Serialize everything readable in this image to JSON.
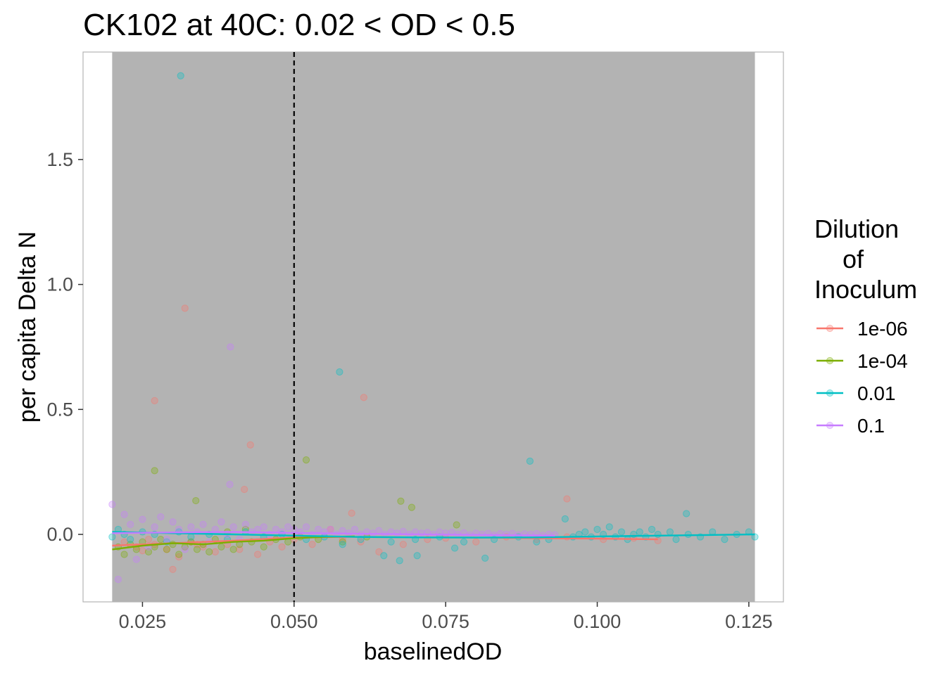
{
  "chart_data": {
    "type": "scatter",
    "title": "CK102 at 40C: 0.02 < OD < 0.5",
    "xlabel": "baselinedOD",
    "ylabel": "per capita Delta N",
    "xlim": [
      0.0152,
      0.1307
    ],
    "ylim": [
      -0.27,
      1.93
    ],
    "x_ticks": [
      "0.025",
      "0.050",
      "0.075",
      "0.100",
      "0.125"
    ],
    "x_tick_values": [
      0.025,
      0.05,
      0.075,
      0.1,
      0.125
    ],
    "y_ticks": [
      "0.0",
      "0.5",
      "1.0",
      "1.5"
    ],
    "y_tick_values": [
      0.0,
      0.5,
      1.0,
      1.5
    ],
    "shaded_region": {
      "x_from": 0.02,
      "x_to": 0.126,
      "color": "#b3b3b3"
    },
    "reference_line": {
      "x": 0.05,
      "style": "dashed",
      "color": "#000000"
    },
    "grid": false,
    "legend": {
      "title": "Dilution\n    of\nInoculum",
      "placement": "right"
    },
    "series": [
      {
        "name": "1e-06",
        "color": "#f8766d",
        "points": [
          [
            0.027,
            0.535
          ],
          [
            0.032,
            0.905
          ],
          [
            0.0428,
            0.358
          ],
          [
            0.0418,
            0.18
          ],
          [
            0.0615,
            0.548
          ],
          [
            0.0595,
            0.085
          ],
          [
            0.095,
            0.142
          ],
          [
            0.022,
            -0.03
          ],
          [
            0.024,
            -0.05
          ],
          [
            0.025,
            -0.065
          ],
          [
            0.027,
            -0.04
          ],
          [
            0.029,
            -0.06
          ],
          [
            0.03,
            -0.14
          ],
          [
            0.031,
            -0.09
          ],
          [
            0.033,
            -0.03
          ],
          [
            0.035,
            -0.05
          ],
          [
            0.037,
            -0.07
          ],
          [
            0.039,
            -0.04
          ],
          [
            0.041,
            -0.06
          ],
          [
            0.044,
            -0.08
          ],
          [
            0.046,
            -0.03
          ],
          [
            0.048,
            -0.05
          ],
          [
            0.05,
            -0.02
          ],
          [
            0.053,
            -0.04
          ],
          [
            0.056,
            0.02
          ],
          [
            0.058,
            -0.02
          ],
          [
            0.061,
            -0.03
          ],
          [
            0.064,
            -0.07
          ],
          [
            0.068,
            -0.04
          ],
          [
            0.072,
            -0.02
          ],
          [
            0.075,
            -0.015
          ],
          [
            0.08,
            -0.03
          ],
          [
            0.085,
            -0.01
          ],
          [
            0.09,
            -0.02
          ],
          [
            0.095,
            -0.01
          ],
          [
            0.101,
            -0.02
          ],
          [
            0.106,
            -0.015
          ],
          [
            0.11,
            -0.025
          ],
          [
            0.026,
            -0.02
          ],
          [
            0.034,
            -0.04
          ]
        ],
        "smooth": [
          [
            0.02,
            -0.045
          ],
          [
            0.03,
            -0.035
          ],
          [
            0.04,
            -0.025
          ],
          [
            0.05,
            -0.012
          ],
          [
            0.06,
            -0.01
          ],
          [
            0.07,
            -0.012
          ],
          [
            0.08,
            -0.013
          ],
          [
            0.09,
            -0.015
          ],
          [
            0.1,
            -0.017
          ],
          [
            0.11,
            -0.02
          ]
        ]
      },
      {
        "name": "1e-04",
        "color": "#7cae00",
        "points": [
          [
            0.027,
            0.255
          ],
          [
            0.0338,
            0.135
          ],
          [
            0.052,
            0.298
          ],
          [
            0.0676,
            0.133
          ],
          [
            0.0694,
            0.108
          ],
          [
            0.0768,
            0.038
          ],
          [
            0.021,
            -0.05
          ],
          [
            0.022,
            -0.08
          ],
          [
            0.023,
            -0.04
          ],
          [
            0.024,
            -0.06
          ],
          [
            0.025,
            -0.03
          ],
          [
            0.026,
            -0.07
          ],
          [
            0.027,
            -0.05
          ],
          [
            0.028,
            -0.02
          ],
          [
            0.029,
            -0.06
          ],
          [
            0.03,
            -0.04
          ],
          [
            0.031,
            -0.08
          ],
          [
            0.032,
            -0.05
          ],
          [
            0.033,
            -0.03
          ],
          [
            0.034,
            -0.06
          ],
          [
            0.035,
            -0.04
          ],
          [
            0.036,
            -0.07
          ],
          [
            0.037,
            -0.02
          ],
          [
            0.038,
            -0.05
          ],
          [
            0.039,
            0.01
          ],
          [
            0.04,
            -0.06
          ],
          [
            0.041,
            -0.04
          ],
          [
            0.042,
            0.02
          ],
          [
            0.043,
            -0.03
          ],
          [
            0.045,
            -0.05
          ],
          [
            0.047,
            -0.02
          ],
          [
            0.049,
            -0.03
          ],
          [
            0.051,
            -0.01
          ],
          [
            0.054,
            -0.02
          ],
          [
            0.058,
            -0.03
          ],
          [
            0.062,
            -0.01
          ]
        ],
        "smooth": [
          [
            0.02,
            -0.06
          ],
          [
            0.025,
            -0.045
          ],
          [
            0.03,
            -0.035
          ],
          [
            0.035,
            -0.04
          ],
          [
            0.04,
            -0.03
          ],
          [
            0.045,
            -0.025
          ],
          [
            0.05,
            -0.015
          ],
          [
            0.055,
            -0.01
          ],
          [
            0.06,
            -0.008
          ]
        ]
      },
      {
        "name": "0.01",
        "color": "#00bfc4",
        "points": [
          [
            0.0313,
            1.835
          ],
          [
            0.0575,
            0.65
          ],
          [
            0.0889,
            0.293
          ],
          [
            0.0947,
            0.062
          ],
          [
            0.1147,
            0.083
          ],
          [
            0.0815,
            -0.095
          ],
          [
            0.0648,
            -0.085
          ],
          [
            0.0674,
            -0.105
          ],
          [
            0.0703,
            -0.085
          ],
          [
            0.0765,
            -0.055
          ],
          [
            0.02,
            -0.01
          ],
          [
            0.021,
            0.02
          ],
          [
            0.022,
            0.0
          ],
          [
            0.023,
            -0.02
          ],
          [
            0.025,
            0.01
          ],
          [
            0.027,
            0.0
          ],
          [
            0.029,
            -0.03
          ],
          [
            0.031,
            0.01
          ],
          [
            0.033,
            -0.01
          ],
          [
            0.036,
            0.0
          ],
          [
            0.039,
            -0.02
          ],
          [
            0.042,
            0.01
          ],
          [
            0.045,
            -0.01
          ],
          [
            0.048,
            0.0
          ],
          [
            0.052,
            -0.02
          ],
          [
            0.055,
            -0.01
          ],
          [
            0.058,
            -0.04
          ],
          [
            0.061,
            -0.02
          ],
          [
            0.066,
            -0.03
          ],
          [
            0.07,
            -0.02
          ],
          [
            0.074,
            -0.01
          ],
          [
            0.078,
            -0.03
          ],
          [
            0.083,
            -0.02
          ],
          [
            0.087,
            -0.01
          ],
          [
            0.09,
            -0.03
          ],
          [
            0.092,
            -0.02
          ],
          [
            0.096,
            -0.01
          ],
          [
            0.097,
            0.0
          ],
          [
            0.098,
            0.01
          ],
          [
            0.099,
            -0.01
          ],
          [
            0.1,
            0.02
          ],
          [
            0.101,
            0.0
          ],
          [
            0.102,
            0.03
          ],
          [
            0.103,
            -0.01
          ],
          [
            0.104,
            0.01
          ],
          [
            0.105,
            -0.02
          ],
          [
            0.106,
            0.0
          ],
          [
            0.107,
            0.01
          ],
          [
            0.108,
            -0.01
          ],
          [
            0.109,
            0.02
          ],
          [
            0.11,
            0.0
          ],
          [
            0.112,
            0.01
          ],
          [
            0.113,
            -0.02
          ],
          [
            0.115,
            0.0
          ],
          [
            0.117,
            -0.01
          ],
          [
            0.119,
            0.01
          ],
          [
            0.121,
            -0.02
          ],
          [
            0.123,
            0.0
          ],
          [
            0.125,
            0.01
          ],
          [
            0.126,
            -0.01
          ]
        ],
        "smooth": [
          [
            0.02,
            0.01
          ],
          [
            0.03,
            0.005
          ],
          [
            0.04,
            0.0
          ],
          [
            0.05,
            -0.005
          ],
          [
            0.06,
            -0.01
          ],
          [
            0.07,
            -0.012
          ],
          [
            0.08,
            -0.013
          ],
          [
            0.09,
            -0.012
          ],
          [
            0.1,
            -0.008
          ],
          [
            0.11,
            -0.005
          ],
          [
            0.12,
            -0.002
          ],
          [
            0.126,
            0.0
          ]
        ]
      },
      {
        "name": "0.1",
        "color": "#c77cff",
        "points": [
          [
            0.0395,
            0.75
          ],
          [
            0.0394,
            0.2
          ],
          [
            0.02,
            0.12
          ],
          [
            0.021,
            -0.18
          ],
          [
            0.022,
            0.08
          ],
          [
            0.023,
            0.04
          ],
          [
            0.024,
            -0.1
          ],
          [
            0.025,
            0.06
          ],
          [
            0.026,
            -0.05
          ],
          [
            0.027,
            0.03
          ],
          [
            0.028,
            0.07
          ],
          [
            0.029,
            -0.02
          ],
          [
            0.03,
            0.05
          ],
          [
            0.031,
            0.02
          ],
          [
            0.032,
            -0.06
          ],
          [
            0.033,
            0.03
          ],
          [
            0.034,
            0.01
          ],
          [
            0.035,
            0.04
          ],
          [
            0.036,
            -0.03
          ],
          [
            0.037,
            0.02
          ],
          [
            0.038,
            0.05
          ],
          [
            0.039,
            0.0
          ],
          [
            0.04,
            0.03
          ],
          [
            0.041,
            -0.02
          ],
          [
            0.042,
            0.04
          ],
          [
            0.043,
            0.01
          ],
          [
            0.044,
            0.02
          ],
          [
            0.045,
            0.03
          ],
          [
            0.046,
            0.0
          ],
          [
            0.047,
            0.02
          ],
          [
            0.048,
            0.01
          ],
          [
            0.049,
            0.03
          ],
          [
            0.05,
            0.02
          ],
          [
            0.051,
            0.01
          ],
          [
            0.052,
            0.03
          ],
          [
            0.053,
            0.0
          ],
          [
            0.054,
            0.02
          ],
          [
            0.055,
            0.01
          ],
          [
            0.056,
            0.02
          ],
          [
            0.057,
            0.0
          ],
          [
            0.058,
            0.015
          ],
          [
            0.059,
            0.005
          ],
          [
            0.06,
            0.02
          ],
          [
            0.061,
            0.0
          ],
          [
            0.062,
            0.01
          ],
          [
            0.063,
            0.005
          ],
          [
            0.064,
            0.015
          ],
          [
            0.065,
            0.0
          ],
          [
            0.066,
            0.01
          ],
          [
            0.067,
            0.005
          ],
          [
            0.068,
            0.012
          ],
          [
            0.069,
            0.0
          ],
          [
            0.07,
            0.01
          ],
          [
            0.071,
            0.005
          ],
          [
            0.072,
            0.008
          ],
          [
            0.073,
            0.0
          ],
          [
            0.074,
            0.01
          ],
          [
            0.075,
            0.005
          ],
          [
            0.076,
            0.008
          ],
          [
            0.077,
            0.0
          ],
          [
            0.078,
            0.006
          ],
          [
            0.079,
            -0.002
          ],
          [
            0.08,
            0.005
          ],
          [
            0.081,
            0.0
          ],
          [
            0.082,
            0.004
          ],
          [
            0.083,
            -0.003
          ],
          [
            0.084,
            0.003
          ],
          [
            0.085,
            0.0
          ],
          [
            0.086,
            0.004
          ],
          [
            0.087,
            -0.002
          ],
          [
            0.088,
            0.002
          ],
          [
            0.089,
            0.0
          ],
          [
            0.09,
            0.003
          ],
          [
            0.091,
            -0.004
          ],
          [
            0.092,
            0.0
          ],
          [
            0.093,
            -0.002
          ]
        ],
        "smooth": [
          [
            0.02,
            0.005
          ],
          [
            0.03,
            0.008
          ],
          [
            0.04,
            0.01
          ],
          [
            0.05,
            0.006
          ],
          [
            0.06,
            0.003
          ],
          [
            0.07,
            0.0
          ],
          [
            0.08,
            -0.002
          ],
          [
            0.09,
            -0.004
          ],
          [
            0.093,
            -0.005
          ]
        ]
      }
    ]
  }
}
